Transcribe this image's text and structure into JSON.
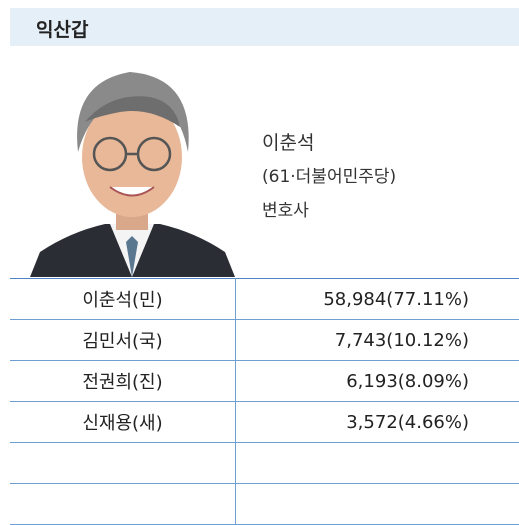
{
  "header": {
    "title": "익산갑"
  },
  "candidate": {
    "name": "이춘석",
    "details": "(61·더불어민주당)",
    "occupation": "변호사"
  },
  "table": {
    "rows": [
      [
        "이춘석(민)",
        "58,984(77.11%)"
      ],
      [
        "김민서(국)",
        "7,743(10.12%)"
      ],
      [
        "전권희(진)",
        "6,193(8.09%)"
      ],
      [
        "신재용(새)",
        "3,572(4.66%)"
      ]
    ]
  }
}
